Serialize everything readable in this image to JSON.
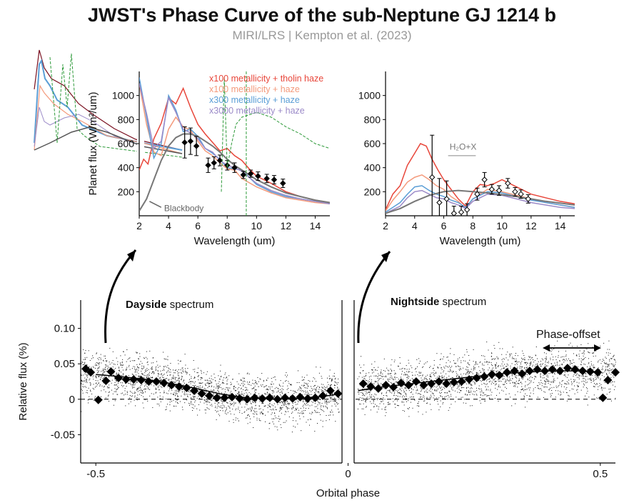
{
  "title": "JWST's Phase Curve of the sub-Neptune GJ 1214 b",
  "subtitle": "MIRI/LRS | Kempton et al. (2023)",
  "colors": {
    "tholin": "#e8463a",
    "x100haze": "#f49a7c",
    "x300haze": "#5b9ed6",
    "x3000haze": "#9b8ac8",
    "blackbody": "#777777",
    "green": "#2e9a3a",
    "darkred": "#7a1020",
    "water": "#999999"
  },
  "chart_data": [
    {
      "id": "dayside",
      "type": "line",
      "xlabel": "Wavelength (um)",
      "ylabel": "Planet flux (W/m²/um)",
      "xlim": [
        2,
        15
      ],
      "ylim": [
        0,
        1200
      ],
      "xticks": [
        2,
        4,
        6,
        8,
        10,
        12,
        14
      ],
      "yticks": [
        200,
        400,
        600,
        800,
        1000
      ],
      "legend": [
        "x100 metallicity + tholin haze",
        "x100 metallicity + haze",
        "x300 metallicity + haze",
        "x3000 metallicity + haze"
      ],
      "blackbody_label": "Blackbody",
      "series": [
        {
          "name": "x100 metallicity + tholin haze",
          "color": "tholin",
          "x": [
            2.0,
            2.3,
            2.6,
            3.0,
            3.5,
            4.0,
            4.5,
            5.0,
            5.5,
            6.0,
            6.5,
            7.0,
            7.5,
            8.0,
            8.5,
            9.0,
            9.5,
            10.0,
            11.0,
            12.0,
            13.0,
            14.0,
            15.0
          ],
          "y": [
            380,
            470,
            430,
            640,
            770,
            980,
            930,
            1060,
            900,
            760,
            680,
            610,
            540,
            560,
            500,
            460,
            390,
            330,
            270,
            200,
            160,
            130,
            110
          ]
        },
        {
          "name": "x100 metallicity + haze",
          "color": "x100haze",
          "x": [
            2.0,
            2.5,
            3.0,
            3.5,
            4.0,
            4.5,
            5.0,
            5.5,
            6.0,
            6.5,
            7.0,
            7.5,
            8.0,
            8.5,
            9.0,
            10.0,
            11.0,
            12.0,
            13.0,
            14.0,
            15.0
          ],
          "y": [
            1100,
            760,
            530,
            500,
            720,
            820,
            740,
            710,
            620,
            540,
            500,
            440,
            390,
            380,
            310,
            240,
            190,
            150,
            130,
            110,
            100
          ]
        },
        {
          "name": "x300 metallicity + haze",
          "color": "x300haze",
          "x": [
            2.0,
            2.5,
            3.0,
            3.5,
            4.0,
            4.5,
            5.0,
            5.5,
            6.0,
            6.5,
            7.0,
            7.5,
            8.0,
            8.5,
            9.0,
            10.0,
            11.0,
            12.0,
            13.0,
            14.0,
            15.0
          ],
          "y": [
            1150,
            820,
            480,
            600,
            1000,
            880,
            700,
            720,
            660,
            560,
            520,
            470,
            400,
            390,
            380,
            260,
            200,
            160,
            140,
            120,
            100
          ]
        },
        {
          "name": "x3000 metallicity + haze",
          "color": "x3000haze",
          "x": [
            2.0,
            2.5,
            3.0,
            3.5,
            4.0,
            4.5,
            5.0,
            5.5,
            6.0,
            6.5,
            7.0,
            7.5,
            8.0,
            8.5,
            9.0,
            10.0,
            11.0,
            12.0,
            13.0,
            14.0,
            15.0
          ],
          "y": [
            1100,
            850,
            560,
            620,
            980,
            860,
            720,
            690,
            640,
            560,
            530,
            460,
            420,
            400,
            370,
            270,
            210,
            170,
            140,
            120,
            100
          ]
        },
        {
          "name": "Blackbody",
          "color": "blackbody",
          "x": [
            2.0,
            2.5,
            3.0,
            3.5,
            4.0,
            4.5,
            5.0,
            5.5,
            6.0,
            6.5,
            7.0,
            7.5,
            8.0,
            8.5,
            9.0,
            10.0,
            11.0,
            12.0,
            13.0,
            14.0,
            15.0
          ],
          "y": [
            40,
            140,
            300,
            460,
            580,
            650,
            680,
            680,
            660,
            620,
            580,
            530,
            470,
            420,
            380,
            300,
            240,
            190,
            160,
            130,
            110
          ]
        }
      ],
      "points": {
        "x": [
          5.1,
          5.5,
          5.9,
          6.7,
          7.1,
          7.5,
          8.0,
          8.5,
          9.1,
          9.6,
          10.1,
          10.7,
          11.2,
          11.8
        ],
        "y": [
          610,
          620,
          580,
          420,
          440,
          460,
          420,
          400,
          340,
          350,
          330,
          310,
          300,
          270
        ],
        "err": [
          130,
          110,
          80,
          60,
          50,
          45,
          40,
          40,
          30,
          30,
          35,
          35,
          35,
          35
        ]
      }
    },
    {
      "id": "nightside",
      "type": "line",
      "xlabel": "Wavelength (um)",
      "xlim": [
        2,
        15
      ],
      "ylim": [
        0,
        1200
      ],
      "xticks": [
        2,
        4,
        6,
        8,
        10,
        12,
        14
      ],
      "yticks": [
        200,
        400,
        600,
        800,
        1000
      ],
      "annotation": "H₂O+X",
      "series": [
        {
          "name": "x100 metallicity + tholin haze",
          "color": "tholin",
          "x": [
            2.0,
            2.5,
            3.0,
            3.5,
            4.0,
            4.4,
            4.8,
            5.2,
            5.6,
            6.0,
            6.5,
            7.0,
            7.5,
            8.0,
            8.5,
            9.0,
            9.5,
            10.0,
            11.0,
            12.0,
            13.0,
            14.0,
            15.0
          ],
          "y": [
            50,
            180,
            250,
            420,
            520,
            600,
            580,
            470,
            380,
            300,
            220,
            140,
            80,
            200,
            260,
            250,
            270,
            300,
            240,
            180,
            150,
            120,
            100
          ]
        },
        {
          "name": "x100 metallicity + haze",
          "color": "x100haze",
          "x": [
            2.0,
            2.5,
            3.0,
            3.5,
            4.0,
            4.5,
            5.0,
            5.5,
            6.0,
            6.5,
            7.0,
            7.5,
            8.0,
            9.0,
            10.0,
            11.0,
            12.0,
            13.0,
            14.0,
            15.0
          ],
          "y": [
            40,
            130,
            200,
            280,
            320,
            340,
            300,
            250,
            220,
            160,
            120,
            60,
            140,
            220,
            200,
            170,
            140,
            110,
            90,
            70
          ]
        },
        {
          "name": "x300 metallicity + haze",
          "color": "x300haze",
          "x": [
            2.0,
            2.5,
            3.0,
            3.5,
            4.0,
            4.5,
            5.0,
            5.5,
            6.0,
            6.5,
            7.0,
            7.5,
            8.0,
            9.0,
            10.0,
            11.0,
            12.0,
            13.0,
            14.0,
            15.0
          ],
          "y": [
            30,
            70,
            110,
            180,
            240,
            250,
            210,
            180,
            160,
            130,
            110,
            70,
            140,
            200,
            190,
            160,
            130,
            110,
            90,
            70
          ]
        },
        {
          "name": "x3000 metallicity + haze",
          "color": "x3000haze",
          "x": [
            2.0,
            2.5,
            3.0,
            3.5,
            4.0,
            4.5,
            5.0,
            5.5,
            6.0,
            6.5,
            7.0,
            7.5,
            8.0,
            9.0,
            10.0,
            11.0,
            12.0,
            13.0,
            14.0,
            15.0
          ],
          "y": [
            20,
            50,
            80,
            150,
            200,
            210,
            180,
            150,
            140,
            110,
            90,
            60,
            120,
            180,
            170,
            140,
            110,
            90,
            70,
            60
          ]
        },
        {
          "name": "Blackbody",
          "color": "blackbody",
          "x": [
            2.0,
            3.0,
            4.0,
            5.0,
            6.0,
            7.0,
            8.0,
            9.0,
            10.0,
            11.0,
            12.0,
            13.0,
            14.0,
            15.0
          ],
          "y": [
            20,
            60,
            120,
            170,
            200,
            210,
            200,
            190,
            175,
            160,
            140,
            120,
            105,
            90
          ]
        }
      ],
      "points": {
        "x": [
          5.2,
          5.7,
          6.2,
          6.7,
          7.2,
          7.6,
          8.3,
          8.8,
          9.3,
          9.8,
          10.4,
          10.9,
          11.3,
          11.8
        ],
        "y": [
          320,
          110,
          140,
          20,
          30,
          50,
          180,
          300,
          220,
          210,
          270,
          200,
          180,
          140
        ],
        "err": [
          350,
          200,
          150,
          60,
          50,
          50,
          50,
          60,
          40,
          40,
          40,
          35,
          35,
          35
        ]
      }
    },
    {
      "id": "phase-curve",
      "type": "scatter",
      "xlabel": "Orbital phase",
      "ylabel": "Relative flux (%)",
      "xlim": [
        -0.53,
        0.53
      ],
      "ylim": [
        -0.09,
        0.14
      ],
      "xtick_labels": [
        "-0.5",
        "0",
        "0.5"
      ],
      "xticks": [
        -0.5,
        0,
        0.5
      ],
      "ytick_labels": [
        "-0.05",
        "0",
        "0.05",
        "0.10"
      ],
      "yticks": [
        -0.05,
        0,
        0.05,
        0.1
      ],
      "dayside_label": {
        "bold": "Dayside",
        "rest": " spectrum"
      },
      "nightside_label": {
        "bold": "Nightside",
        "rest": " spectrum"
      },
      "phase_offset_label": "Phase-offset",
      "segments": [
        {
          "name": "first-orbit",
          "binned_x": [
            -0.52,
            -0.51,
            -0.495,
            -0.48,
            -0.47,
            -0.455,
            -0.44,
            -0.425,
            -0.41,
            -0.395,
            -0.38,
            -0.365,
            -0.35,
            -0.335,
            -0.32,
            -0.305,
            -0.29,
            -0.275,
            -0.26,
            -0.245,
            -0.23,
            -0.215,
            -0.2,
            -0.185,
            -0.17,
            -0.155,
            -0.14,
            -0.125,
            -0.11,
            -0.095,
            -0.08,
            -0.065,
            -0.05,
            -0.035,
            -0.02
          ],
          "binned_y": [
            0.043,
            0.038,
            -0.001,
            0.026,
            0.039,
            0.03,
            0.028,
            0.028,
            0.027,
            0.025,
            0.025,
            0.023,
            0.02,
            0.018,
            0.016,
            0.012,
            0.008,
            0.005,
            0.002,
            0.002,
            0.003,
            0.001,
            0.0,
            0.002,
            0.001,
            0.002,
            0.0,
            0.002,
            0.001,
            0.003,
            0.001,
            0.002,
            0.005,
            0.012,
            0.008
          ]
        },
        {
          "name": "second-orbit",
          "binned_x": [
            0.03,
            0.045,
            0.06,
            0.075,
            0.09,
            0.105,
            0.12,
            0.135,
            0.15,
            0.165,
            0.18,
            0.195,
            0.21,
            0.225,
            0.24,
            0.255,
            0.27,
            0.285,
            0.3,
            0.315,
            0.33,
            0.345,
            0.36,
            0.375,
            0.39,
            0.405,
            0.42,
            0.435,
            0.45,
            0.465,
            0.48,
            0.495,
            0.505,
            0.515,
            0.53
          ],
          "binned_y": [
            0.022,
            0.018,
            0.015,
            0.02,
            0.017,
            0.023,
            0.02,
            0.025,
            0.02,
            0.022,
            0.025,
            0.022,
            0.024,
            0.025,
            0.028,
            0.03,
            0.032,
            0.035,
            0.034,
            0.038,
            0.04,
            0.036,
            0.04,
            0.042,
            0.04,
            0.042,
            0.04,
            0.044,
            0.042,
            0.04,
            0.039,
            0.038,
            0.002,
            0.027,
            0.038
          ]
        }
      ],
      "model": {
        "x": [
          -0.5,
          -0.45,
          -0.4,
          -0.35,
          -0.3,
          -0.25,
          -0.2,
          -0.15,
          -0.1,
          -0.05,
          -0.02,
          0.02,
          0.05,
          0.1,
          0.15,
          0.2,
          0.25,
          0.3,
          0.35,
          0.4,
          0.45,
          0.49
        ],
        "y": [
          0.035,
          0.032,
          0.028,
          0.022,
          0.015,
          0.007,
          0.002,
          0.0,
          0.001,
          0.004,
          0.007,
          0.012,
          0.016,
          0.02,
          0.024,
          0.028,
          0.032,
          0.036,
          0.038,
          0.04,
          0.04,
          0.039
        ]
      }
    }
  ]
}
